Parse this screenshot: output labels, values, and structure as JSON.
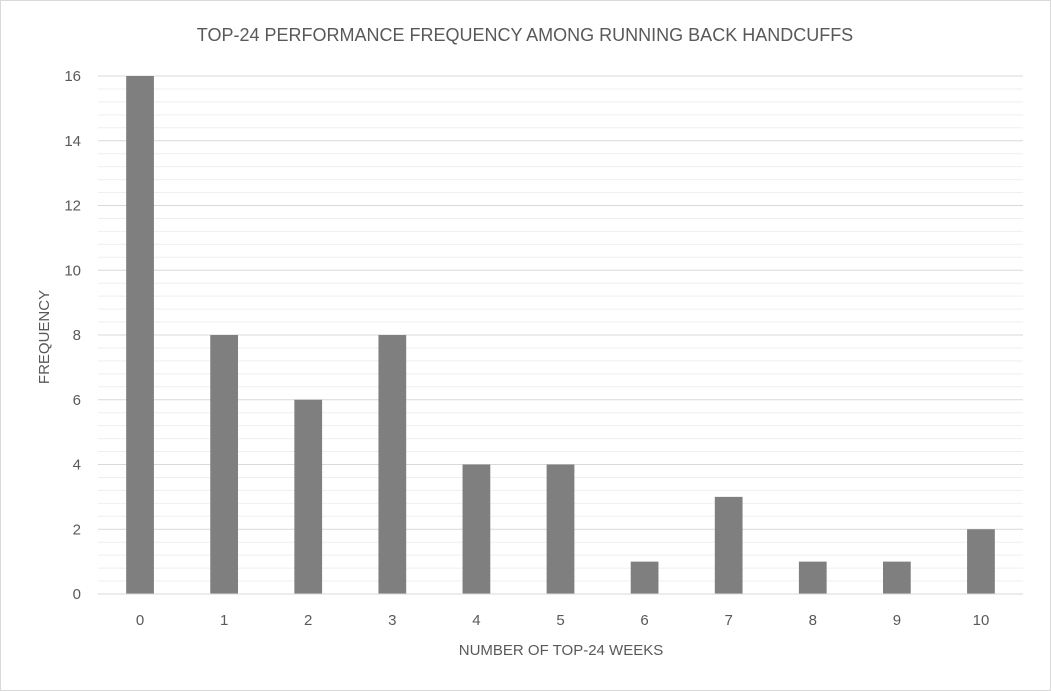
{
  "chart_data": {
    "type": "bar",
    "title": "TOP-24 PERFORMANCE FREQUENCY AMONG RUNNING BACK HANDCUFFS",
    "xlabel": "NUMBER OF TOP-24 WEEKS",
    "ylabel": "FREQUENCY",
    "categories": [
      "0",
      "1",
      "2",
      "3",
      "4",
      "5",
      "6",
      "7",
      "8",
      "9",
      "10"
    ],
    "values": [
      16,
      8,
      6,
      8,
      4,
      4,
      1,
      3,
      1,
      1,
      2
    ],
    "ylim": [
      0,
      16
    ],
    "y_ticks": [
      "0",
      "2",
      "4",
      "6",
      "8",
      "10",
      "12",
      "14",
      "16"
    ],
    "grid": {
      "major": true,
      "minor": true
    },
    "legend": "none",
    "colors": {
      "bar": "#7f7f7f",
      "major_grid": "#d9d9d9",
      "minor_grid": "#efefef",
      "text": "#595959"
    }
  }
}
